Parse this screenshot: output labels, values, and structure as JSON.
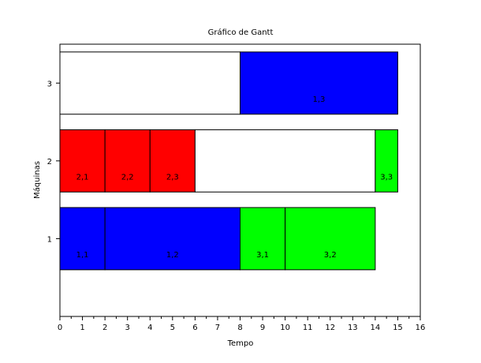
{
  "chart_data": {
    "type": "gantt",
    "title": "Gráfico de Gantt",
    "xlabel": "Tempo",
    "ylabel": "Máquinas",
    "xlim": [
      0,
      16
    ],
    "ylim": [
      0,
      3.5
    ],
    "x_ticks": [
      0,
      1,
      2,
      3,
      4,
      5,
      6,
      7,
      8,
      9,
      10,
      11,
      12,
      13,
      14,
      15,
      16
    ],
    "y_ticks": [
      1,
      2,
      3
    ],
    "grid": false,
    "rows": [
      {
        "machine": 1,
        "tasks": [
          {
            "label": "1,1",
            "start": 0,
            "end": 2,
            "color": "#0000ff"
          },
          {
            "label": "1,2",
            "start": 2,
            "end": 8,
            "color": "#0000ff"
          },
          {
            "label": "3,1",
            "start": 8,
            "end": 10,
            "color": "#00ff00"
          },
          {
            "label": "3,2",
            "start": 10,
            "end": 14,
            "color": "#00ff00"
          }
        ]
      },
      {
        "machine": 2,
        "tasks": [
          {
            "label": "2,1",
            "start": 0,
            "end": 2,
            "color": "#ff0000"
          },
          {
            "label": "2,2",
            "start": 2,
            "end": 4,
            "color": "#ff0000"
          },
          {
            "label": "2,3",
            "start": 4,
            "end": 6,
            "color": "#ff0000"
          },
          {
            "label": "",
            "start": 6,
            "end": 14,
            "color": "#ffffff"
          },
          {
            "label": "3,3",
            "start": 14,
            "end": 15,
            "color": "#00ff00"
          }
        ]
      },
      {
        "machine": 3,
        "tasks": [
          {
            "label": "",
            "start": 0,
            "end": 8,
            "color": "#ffffff"
          },
          {
            "label": "1,3",
            "start": 8,
            "end": 15,
            "color": "#0000ff"
          }
        ]
      }
    ]
  }
}
